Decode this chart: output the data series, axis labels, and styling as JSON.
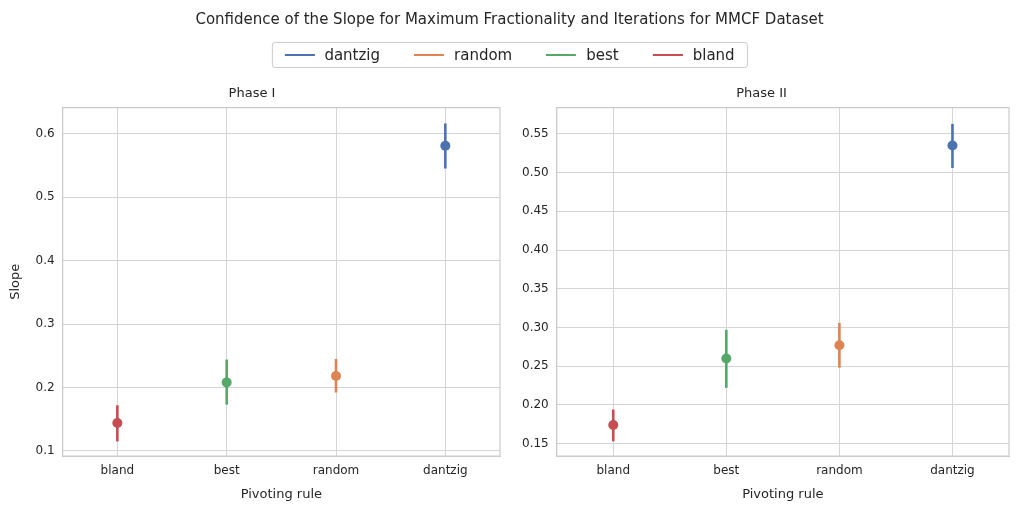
{
  "chart_data": [
    {
      "type": "scatter",
      "title": "Phase I",
      "annotations": [
        "Confidence of the Slope for Maximum Fractionality and Iterations for MMCF Dataset"
      ],
      "xlabel": "Pivoting rule",
      "ylabel": "Slope",
      "categories": [
        "bland",
        "best",
        "random",
        "dantzig"
      ],
      "grid": true,
      "legend": "top",
      "marker": "circle",
      "ylim": [
        0.092,
        0.641
      ],
      "yticks": [
        0.1,
        0.2,
        0.3,
        0.4,
        0.5,
        0.6
      ],
      "series": [
        {
          "name": "dantzig",
          "color": "#4c72b0",
          "values": [
            null,
            null,
            null,
            0.581
          ],
          "errors": [
            null,
            null,
            null,
            [
              0.545,
              0.616
            ]
          ]
        },
        {
          "name": "random",
          "color": "#dd8452",
          "values": [
            null,
            null,
            0.218,
            null
          ],
          "errors": [
            null,
            null,
            [
              0.192,
              0.245
            ],
            null
          ]
        },
        {
          "name": "best",
          "color": "#55a868",
          "values": [
            null,
            0.208,
            null,
            null
          ],
          "errors": [
            null,
            [
              0.173,
              0.244
            ],
            null,
            null
          ]
        },
        {
          "name": "bland",
          "color": "#c44e52",
          "values": [
            0.144,
            null,
            null,
            null
          ],
          "errors": [
            [
              0.115,
              0.172
            ],
            null,
            null,
            null
          ]
        }
      ]
    },
    {
      "type": "scatter",
      "title": "Phase II",
      "xlabel": "Pivoting rule",
      "categories": [
        "bland",
        "best",
        "random",
        "dantzig"
      ],
      "grid": true,
      "marker": "circle",
      "ylim": [
        0.134,
        0.584
      ],
      "yticks": [
        0.15,
        {
          "value": 0.2,
          "label": "0.20"
        },
        0.25,
        {
          "value": 0.3,
          "label": "0.30"
        },
        0.35,
        {
          "value": 0.4,
          "label": "0.40"
        },
        0.45,
        {
          "value": 0.5,
          "label": "0.50"
        },
        0.55
      ],
      "series": [
        {
          "color": "#4c72b0",
          "values": [
            null,
            null,
            null,
            0.535
          ],
          "errors": [
            null,
            null,
            null,
            [
              0.506,
              0.563
            ]
          ]
        },
        {
          "color": "#dd8452",
          "values": [
            null,
            null,
            0.277,
            null
          ],
          "errors": [
            null,
            null,
            [
              0.248,
              0.306
            ],
            null
          ]
        },
        {
          "color": "#55a868",
          "values": [
            null,
            0.26,
            null,
            null
          ],
          "errors": [
            null,
            [
              0.222,
              0.297
            ],
            null,
            null
          ]
        },
        {
          "color": "#c44e52",
          "values": [
            0.174,
            null,
            null,
            null
          ],
          "errors": [
            [
              0.153,
              0.194
            ],
            null,
            null,
            null
          ]
        }
      ]
    }
  ]
}
